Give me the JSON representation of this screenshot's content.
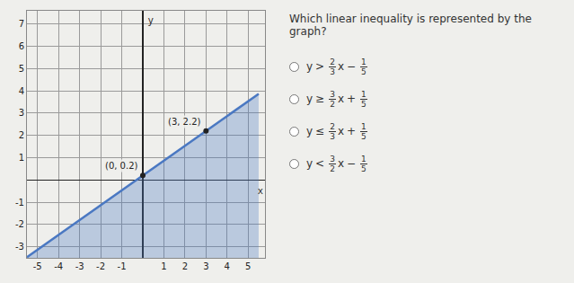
{
  "chart_data": {
    "type": "area",
    "x": [
      -5.5,
      0,
      3,
      5.5
    ],
    "values": [
      -3.47,
      0.2,
      2.2,
      3.87
    ],
    "color": "#4a78c2",
    "points": [
      {
        "x": 0,
        "y": 0.2,
        "label": "(0, 0.2)"
      },
      {
        "x": 3,
        "y": 2.2,
        "label": "(3, 2.2)"
      }
    ],
    "x_label": "x",
    "y_label": "y",
    "xlim": [
      -5.5,
      5.8
    ],
    "ylim": [
      -3.5,
      7.6
    ],
    "xticks": [
      -5,
      -4,
      -3,
      -2,
      -1,
      1,
      2,
      3,
      4,
      5
    ],
    "yticks": [
      -3,
      -2,
      -1,
      1,
      2,
      3,
      4,
      5,
      6,
      7
    ],
    "grid": true
  },
  "question": {
    "text": "Which linear inequality is represented by the graph?",
    "options": [
      {
        "lhs": "y",
        "op": ">",
        "a_num": "2",
        "a_den": "3",
        "var": "x",
        "sign": "−",
        "b_num": "1",
        "b_den": "5"
      },
      {
        "lhs": "y",
        "op": "≥",
        "a_num": "3",
        "a_den": "2",
        "var": "x",
        "sign": "+",
        "b_num": "1",
        "b_den": "5"
      },
      {
        "lhs": "y",
        "op": "≤",
        "a_num": "2",
        "a_den": "3",
        "var": "x",
        "sign": "+",
        "b_num": "1",
        "b_den": "5"
      },
      {
        "lhs": "y",
        "op": "<",
        "a_num": "3",
        "a_den": "2",
        "var": "x",
        "sign": "−",
        "b_num": "1",
        "b_den": "5"
      }
    ]
  }
}
